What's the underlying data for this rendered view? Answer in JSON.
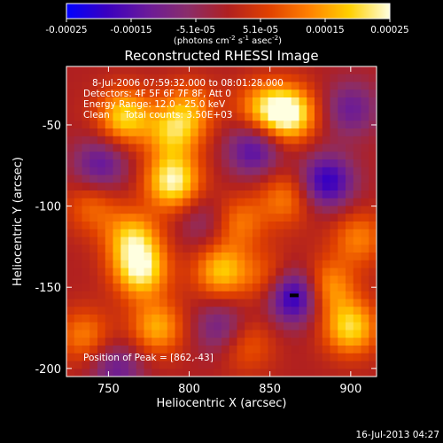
{
  "colorbar": {
    "ticks": [
      "-0.00025",
      "-0.00015",
      "-5.1e-05",
      "5.1e-05",
      "0.00015",
      "0.00025"
    ],
    "unit_label": {
      "pre": "(photons cm",
      "exp1": "-2",
      "mid1": " s",
      "exp2": "-1",
      "mid2": " asec",
      "exp3": "-2",
      "post": ")"
    },
    "range": [
      -0.00025,
      0.00025
    ],
    "colors": [
      "#0000ff",
      "#3a00c0",
      "#6a1a9a",
      "#8a2d6a",
      "#b02020",
      "#e04000",
      "#ff8000",
      "#ffd000",
      "#ffffe0"
    ]
  },
  "chart_data": {
    "type": "heatmap",
    "title": "Reconstructed RHESSI Image",
    "xlabel": "Heliocentric X (arcsec)",
    "ylabel": "Heliocentric Y (arcsec)",
    "xlim": [
      724,
      916
    ],
    "ylim": [
      -205,
      -14
    ],
    "xticks": [
      750,
      800,
      850,
      900
    ],
    "yticks": [
      -50,
      -100,
      -150,
      -200
    ],
    "annotations": [
      "8-Jul-2006 07:59:32.000 to 08:01:28.000",
      "Detectors: 4F 5F 6F 7F 8F, Att 0",
      "Energy Range: 12.0 - 25.0 keV",
      "Clean     Total counts: 3.50E+03"
    ],
    "peak_label": "Position of Peak = [862,-43]",
    "sources": [
      {
        "x": 760,
        "y": -45,
        "v": 0.0002
      },
      {
        "x": 790,
        "y": -85,
        "v": 0.00024
      },
      {
        "x": 790,
        "y": -55,
        "v": 0.00016
      },
      {
        "x": 800,
        "y": -40,
        "v": 0.00012
      },
      {
        "x": 770,
        "y": -140,
        "v": 0.00022
      },
      {
        "x": 765,
        "y": -120,
        "v": 0.00018
      },
      {
        "x": 780,
        "y": -175,
        "v": 0.00016
      },
      {
        "x": 820,
        "y": -140,
        "v": 0.00018
      },
      {
        "x": 830,
        "y": -110,
        "v": 0.00012
      },
      {
        "x": 845,
        "y": -40,
        "v": 0.00014
      },
      {
        "x": 862,
        "y": -43,
        "v": 0.00025
      },
      {
        "x": 860,
        "y": -95,
        "v": 0.00012
      },
      {
        "x": 850,
        "y": -145,
        "v": 0.0001
      },
      {
        "x": 885,
        "y": -150,
        "v": 0.00016
      },
      {
        "x": 900,
        "y": -175,
        "v": 0.0002
      },
      {
        "x": 905,
        "y": -120,
        "v": 0.00012
      },
      {
        "x": 835,
        "y": -185,
        "v": 0.0001
      },
      {
        "x": 735,
        "y": -180,
        "v": 0.00012
      },
      {
        "x": 740,
        "y": -100,
        "v": 0.0001
      },
      {
        "x": 865,
        "y": -155,
        "v": -0.00025
      },
      {
        "x": 885,
        "y": -85,
        "v": -0.0002
      },
      {
        "x": 840,
        "y": -65,
        "v": -0.00016
      },
      {
        "x": 745,
        "y": -75,
        "v": -0.00014
      },
      {
        "x": 820,
        "y": -175,
        "v": -0.00012
      },
      {
        "x": 755,
        "y": -200,
        "v": -0.00012
      },
      {
        "x": 900,
        "y": -40,
        "v": -0.00012
      },
      {
        "x": 810,
        "y": -110,
        "v": -8e-05
      }
    ]
  },
  "footer_date": "16-Jul-2013 04:27"
}
